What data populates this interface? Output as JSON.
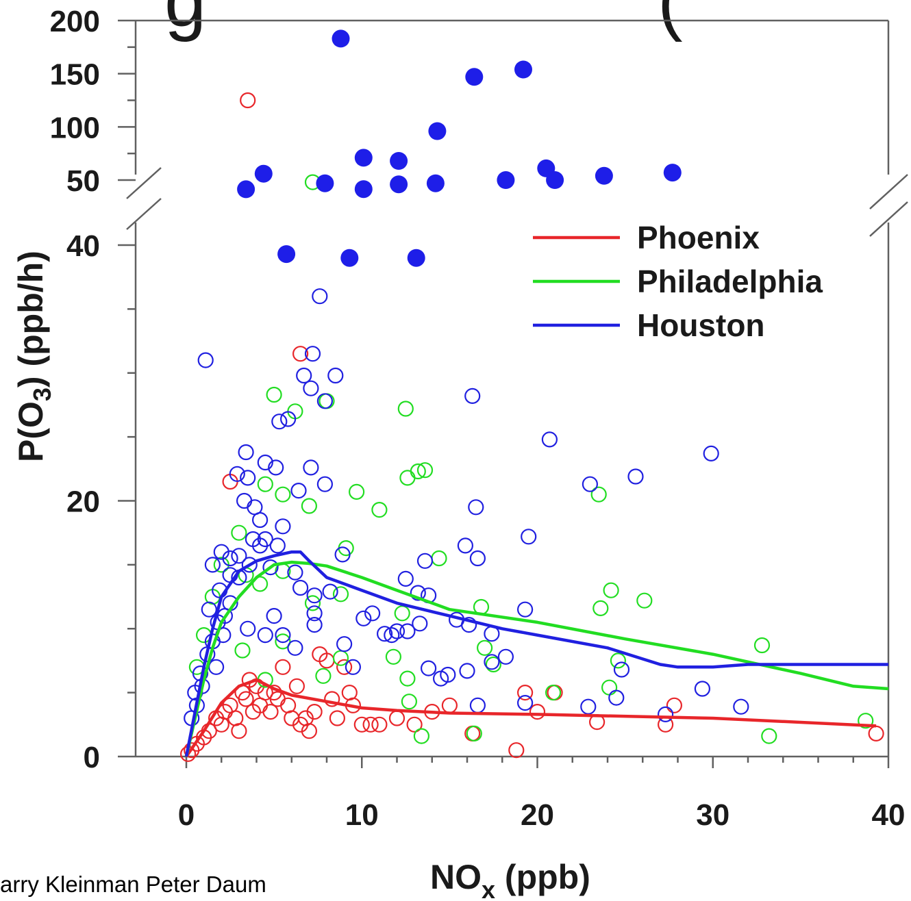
{
  "page_title_fragment": "g",
  "page_title_fragment_right": "(",
  "credit": "arry Kleinman Peter Daum",
  "chart_data": {
    "type": "scatter",
    "title": "",
    "xlabel": "NO",
    "xlabel_sub": "x",
    "xlabel_unit": " (ppb)",
    "ylabel": "P(O",
    "ylabel_sub": "3",
    "ylabel_unit": ") (ppb/h)",
    "xlim": [
      0,
      40
    ],
    "x_ticks": [
      0,
      10,
      20,
      30,
      40
    ],
    "y_lower_range": [
      0,
      40
    ],
    "y_lower_ticks": [
      0,
      20,
      40
    ],
    "y_upper_range": [
      50,
      200
    ],
    "y_upper_ticks": [
      50,
      100,
      150,
      200
    ],
    "axis_break": "between 40 and 50",
    "legend_position": "upper-right",
    "grid": false,
    "legend": [
      {
        "name": "Phoenix",
        "color": "#e8262a"
      },
      {
        "name": "Philadelphia",
        "color": "#22dd22"
      },
      {
        "name": "Houston",
        "color": "#2020e0"
      }
    ],
    "fit_lines": [
      {
        "series": "Phoenix",
        "color": "#e8262a",
        "points": [
          [
            0,
            0
          ],
          [
            1,
            2
          ],
          [
            2,
            4.2
          ],
          [
            3,
            5.5
          ],
          [
            4,
            6
          ],
          [
            5,
            5.3
          ],
          [
            6,
            4.8
          ],
          [
            8,
            4.3
          ],
          [
            10,
            3.8
          ],
          [
            12,
            3.6
          ],
          [
            15,
            3.4
          ],
          [
            20,
            3.3
          ],
          [
            30,
            3
          ],
          [
            39.3,
            2.4
          ]
        ]
      },
      {
        "series": "Philadelphia",
        "color": "#22dd22",
        "points": [
          [
            0,
            0
          ],
          [
            0.5,
            3
          ],
          [
            1,
            6
          ],
          [
            1.5,
            8.5
          ],
          [
            2,
            10.5
          ],
          [
            3,
            12.5
          ],
          [
            4,
            14
          ],
          [
            5,
            15
          ],
          [
            6,
            15.2
          ],
          [
            7,
            15.1
          ],
          [
            8,
            14.9
          ],
          [
            10,
            14
          ],
          [
            12,
            13
          ],
          [
            15,
            11.5
          ],
          [
            20,
            10.5
          ],
          [
            25,
            9.2
          ],
          [
            30,
            8
          ],
          [
            35,
            6.5
          ],
          [
            38,
            5.5
          ],
          [
            40,
            5.3
          ]
        ]
      },
      {
        "series": "Houston",
        "color": "#2020e0",
        "points": [
          [
            0,
            0
          ],
          [
            0.5,
            3.5
          ],
          [
            1,
            7
          ],
          [
            1.5,
            10
          ],
          [
            2,
            12.5
          ],
          [
            3,
            14.5
          ],
          [
            4,
            15.3
          ],
          [
            5,
            15.7
          ],
          [
            6,
            16
          ],
          [
            6.5,
            16
          ],
          [
            7,
            15.3
          ],
          [
            8,
            14
          ],
          [
            10,
            13
          ],
          [
            12,
            12
          ],
          [
            15,
            11
          ],
          [
            18,
            10
          ],
          [
            20,
            9.5
          ],
          [
            24,
            8.5
          ],
          [
            27,
            7.2
          ],
          [
            28,
            7
          ],
          [
            30,
            7
          ],
          [
            32,
            7.2
          ],
          [
            40,
            7.2
          ]
        ]
      }
    ],
    "filled_points": {
      "series": "Houston",
      "color": "#1e1ee8",
      "points": [
        [
          8.8,
          183
        ],
        [
          16.4,
          147
        ],
        [
          19.2,
          154
        ],
        [
          14.3,
          96
        ],
        [
          10.1,
          71
        ],
        [
          12.1,
          68
        ],
        [
          4.4,
          56
        ],
        [
          7.9,
          47
        ],
        [
          12.1,
          46
        ],
        [
          14.2,
          47
        ],
        [
          18.2,
          50
        ],
        [
          20.5,
          61
        ],
        [
          21,
          50
        ],
        [
          23.8,
          54
        ],
        [
          27.7,
          57
        ],
        [
          3.4,
          41.4
        ],
        [
          10.1,
          41.5
        ],
        [
          5.7,
          39.3
        ],
        [
          9.3,
          39
        ],
        [
          13.1,
          39
        ]
      ]
    },
    "open_points": [
      {
        "series": "Phoenix",
        "color": "#e8262a",
        "points": [
          [
            3.5,
            125
          ],
          [
            6.5,
            31.5
          ],
          [
            2.5,
            21.5
          ],
          [
            0.1,
            0.2
          ],
          [
            0.3,
            0.5
          ],
          [
            0.6,
            1
          ],
          [
            1,
            1.5
          ],
          [
            1.3,
            2
          ],
          [
            1.7,
            3
          ],
          [
            2,
            2.5
          ],
          [
            2.2,
            3.5
          ],
          [
            2.5,
            4
          ],
          [
            2.8,
            3
          ],
          [
            3,
            2
          ],
          [
            3.2,
            5
          ],
          [
            3.4,
            4.5
          ],
          [
            3.6,
            6
          ],
          [
            3.8,
            3.5
          ],
          [
            4,
            5.5
          ],
          [
            4.2,
            4
          ],
          [
            4.5,
            5
          ],
          [
            4.8,
            3.5
          ],
          [
            5,
            5
          ],
          [
            5.2,
            4.5
          ],
          [
            5.5,
            7
          ],
          [
            5.8,
            4
          ],
          [
            6,
            3
          ],
          [
            6.3,
            5.5
          ],
          [
            6.5,
            2.5
          ],
          [
            6.8,
            3
          ],
          [
            7,
            2
          ],
          [
            7.3,
            3.5
          ],
          [
            7.6,
            8
          ],
          [
            8,
            7.5
          ],
          [
            8.3,
            4.5
          ],
          [
            8.6,
            3
          ],
          [
            9,
            7
          ],
          [
            9.3,
            5
          ],
          [
            9.5,
            4
          ],
          [
            10,
            2.5
          ],
          [
            10.5,
            2.5
          ],
          [
            11,
            2.5
          ],
          [
            12,
            3
          ],
          [
            13,
            2.5
          ],
          [
            14,
            3.5
          ],
          [
            15,
            4
          ],
          [
            16.3,
            1.8
          ],
          [
            18.8,
            0.5
          ],
          [
            19.3,
            5
          ],
          [
            20,
            3.5
          ],
          [
            21,
            5
          ],
          [
            23.4,
            2.7
          ],
          [
            27.3,
            2.5
          ],
          [
            27.8,
            4
          ],
          [
            39.3,
            1.8
          ]
        ]
      },
      {
        "series": "Philadelphia",
        "color": "#22dd22",
        "points": [
          [
            7.2,
            48
          ],
          [
            5,
            28.3
          ],
          [
            6.2,
            27
          ],
          [
            8,
            27.8
          ],
          [
            12.5,
            27.2
          ],
          [
            12.6,
            21.8
          ],
          [
            13.2,
            22.3
          ],
          [
            13.6,
            22.4
          ],
          [
            9.7,
            20.7
          ],
          [
            11,
            19.3
          ],
          [
            7,
            19.6
          ],
          [
            5.5,
            20.5
          ],
          [
            4.5,
            21.3
          ],
          [
            3,
            17.5
          ],
          [
            2,
            15
          ],
          [
            1.5,
            12.5
          ],
          [
            1,
            9.5
          ],
          [
            0.6,
            7
          ],
          [
            3.4,
            14.2
          ],
          [
            4.2,
            13.5
          ],
          [
            5.5,
            14.5
          ],
          [
            7.2,
            12
          ],
          [
            8.8,
            12.7
          ],
          [
            9.1,
            16.3
          ],
          [
            14.4,
            15.5
          ],
          [
            12.3,
            11.2
          ],
          [
            16.8,
            11.7
          ],
          [
            11.8,
            7.8
          ],
          [
            12.6,
            6.1
          ],
          [
            12.7,
            4.3
          ],
          [
            13.4,
            1.6
          ],
          [
            16.4,
            1.8
          ],
          [
            17,
            8.5
          ],
          [
            17.5,
            7.2
          ],
          [
            20.9,
            5
          ],
          [
            23.6,
            11.6
          ],
          [
            24.2,
            13
          ],
          [
            24.1,
            5.4
          ],
          [
            24.6,
            7.5
          ],
          [
            23.5,
            20.5
          ],
          [
            26.1,
            12.2
          ],
          [
            32.8,
            8.7
          ],
          [
            33.2,
            1.6
          ],
          [
            38.7,
            2.8
          ],
          [
            3.2,
            8.3
          ],
          [
            4.5,
            6
          ],
          [
            7.8,
            6.3
          ],
          [
            8.8,
            7.7
          ],
          [
            5.5,
            9
          ]
        ]
      },
      {
        "series": "Houston",
        "color": "#2020e0",
        "points": [
          [
            7.6,
            36
          ],
          [
            1.1,
            31
          ],
          [
            7.2,
            31.5
          ],
          [
            6.7,
            29.8
          ],
          [
            8.5,
            29.8
          ],
          [
            7.1,
            28.8
          ],
          [
            7.9,
            27.8
          ],
          [
            16.3,
            28.2
          ],
          [
            5.3,
            26.2
          ],
          [
            5.8,
            26.4
          ],
          [
            20.7,
            24.8
          ],
          [
            3.4,
            23.8
          ],
          [
            29.9,
            23.7
          ],
          [
            4.5,
            23
          ],
          [
            5.1,
            22.6
          ],
          [
            2.9,
            22.1
          ],
          [
            3.5,
            21.8
          ],
          [
            7.1,
            22.6
          ],
          [
            7.9,
            21.3
          ],
          [
            6.4,
            20.8
          ],
          [
            23,
            21.3
          ],
          [
            25.6,
            21.9
          ],
          [
            16.5,
            19.5
          ],
          [
            3.9,
            19.5
          ],
          [
            4.2,
            18.5
          ],
          [
            3.3,
            20
          ],
          [
            5.5,
            18
          ],
          [
            4.5,
            17
          ],
          [
            3.8,
            17
          ],
          [
            4.2,
            16.5
          ],
          [
            5.2,
            16.5
          ],
          [
            2,
            16
          ],
          [
            2.5,
            15.5
          ],
          [
            3,
            15.7
          ],
          [
            1.5,
            15
          ],
          [
            2.5,
            14.2
          ],
          [
            3,
            14
          ],
          [
            3.6,
            15
          ],
          [
            4.8,
            14.8
          ],
          [
            6.2,
            14.4
          ],
          [
            8.9,
            15.8
          ],
          [
            15.9,
            16.5
          ],
          [
            16.6,
            15.5
          ],
          [
            19.5,
            17.2
          ],
          [
            13.6,
            15.3
          ],
          [
            12.5,
            13.9
          ],
          [
            13.2,
            12.8
          ],
          [
            13.8,
            12.6
          ],
          [
            6.5,
            13.2
          ],
          [
            7.3,
            12.6
          ],
          [
            8.2,
            12.9
          ],
          [
            7.3,
            11.2
          ],
          [
            7.3,
            10.3
          ],
          [
            10.1,
            10.8
          ],
          [
            10.6,
            11.2
          ],
          [
            11.3,
            9.6
          ],
          [
            11.7,
            9.5
          ],
          [
            12,
            9.8
          ],
          [
            12.6,
            9.8
          ],
          [
            13.3,
            10.4
          ],
          [
            15.4,
            10.7
          ],
          [
            16.1,
            10.3
          ],
          [
            17.4,
            9.6
          ],
          [
            19.3,
            11.5
          ],
          [
            3.5,
            10
          ],
          [
            4.5,
            9.5
          ],
          [
            5,
            11
          ],
          [
            5.5,
            9.5
          ],
          [
            6.2,
            8.5
          ],
          [
            9,
            8.8
          ],
          [
            9.5,
            7
          ],
          [
            13.8,
            6.9
          ],
          [
            14.5,
            6.1
          ],
          [
            14.9,
            6.4
          ],
          [
            16,
            6.7
          ],
          [
            17.4,
            7.4
          ],
          [
            18.2,
            7.8
          ],
          [
            16.6,
            4
          ],
          [
            19.3,
            4.2
          ],
          [
            22.9,
            3.9
          ],
          [
            24.5,
            4.6
          ],
          [
            24.8,
            6.8
          ],
          [
            29.4,
            5.3
          ],
          [
            31.6,
            3.9
          ],
          [
            27.3,
            3.3
          ],
          [
            0.5,
            5
          ],
          [
            0.8,
            6.5
          ],
          [
            1.2,
            8
          ],
          [
            1.5,
            9
          ],
          [
            1.8,
            10.5
          ],
          [
            2.2,
            11
          ],
          [
            2.5,
            12
          ],
          [
            1.3,
            11.5
          ],
          [
            1.9,
            13
          ],
          [
            0.3,
            3
          ],
          [
            0.6,
            4
          ],
          [
            0.9,
            5.5
          ],
          [
            1.7,
            7
          ],
          [
            2.1,
            9.5
          ]
        ]
      }
    ]
  }
}
